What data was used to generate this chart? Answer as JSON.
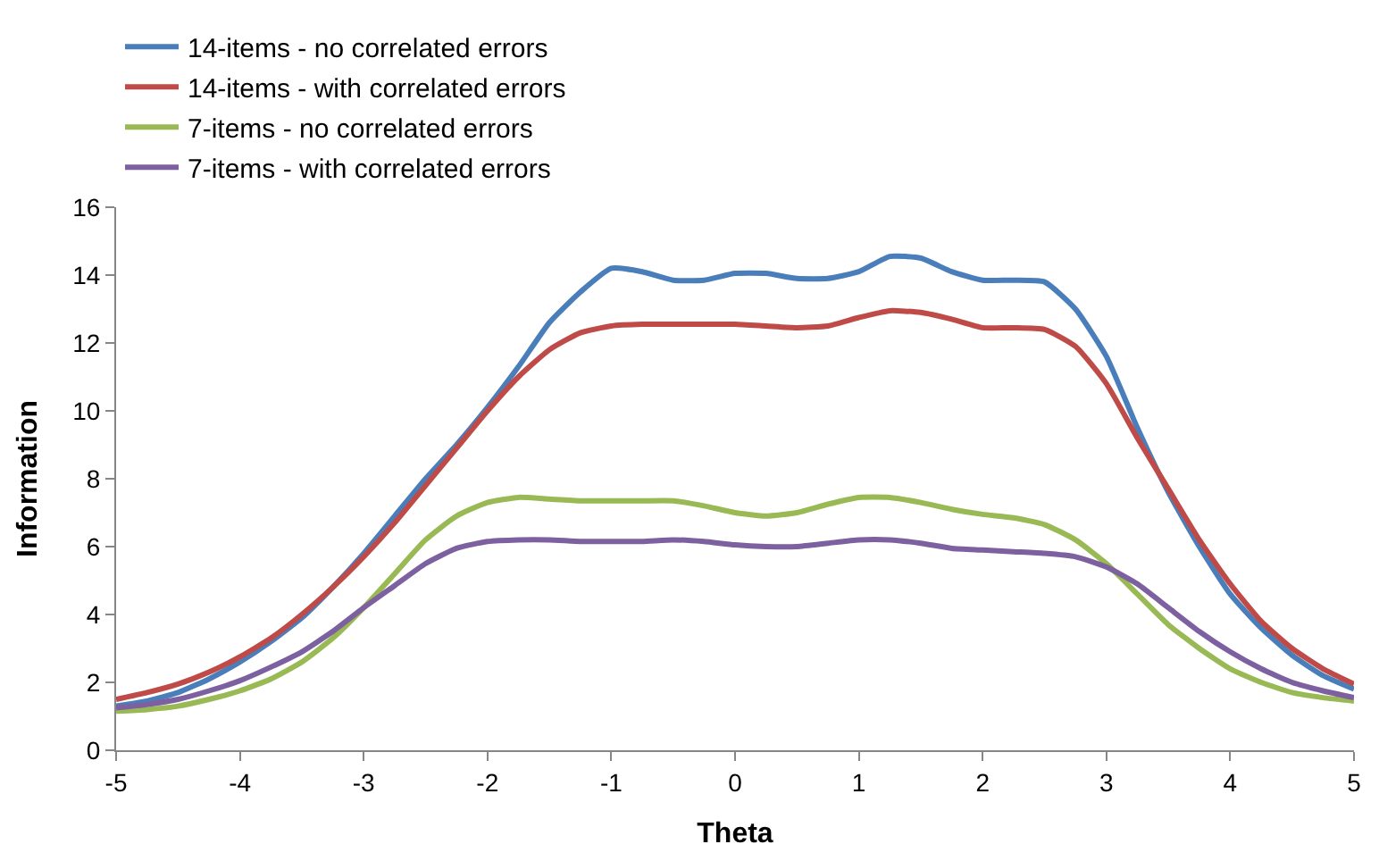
{
  "chart_data": {
    "type": "line",
    "xlabel": "Theta",
    "ylabel": "Information",
    "x": [
      -5,
      -4.75,
      -4.5,
      -4.25,
      -4,
      -3.75,
      -3.5,
      -3.25,
      -3,
      -2.75,
      -2.5,
      -2.25,
      -2,
      -1.75,
      -1.5,
      -1.25,
      -1,
      -0.75,
      -0.5,
      -0.25,
      0,
      0.25,
      0.5,
      0.75,
      1,
      1.25,
      1.5,
      1.75,
      2,
      2.25,
      2.5,
      2.75,
      3,
      3.25,
      3.5,
      3.75,
      4,
      4.25,
      4.5,
      4.75,
      5
    ],
    "series": [
      {
        "name": "14-items - no correlated errors",
        "color": "#4a7ebb",
        "values": [
          1.3,
          1.45,
          1.7,
          2.1,
          2.6,
          3.2,
          3.9,
          4.8,
          5.8,
          6.9,
          8.0,
          9.0,
          10.1,
          11.3,
          12.6,
          13.5,
          14.2,
          14.1,
          13.85,
          13.85,
          14.05,
          14.05,
          13.9,
          13.9,
          14.1,
          14.55,
          14.5,
          14.1,
          13.85,
          13.85,
          13.8,
          13.0,
          11.6,
          9.5,
          7.6,
          6.0,
          4.6,
          3.6,
          2.8,
          2.2,
          1.8
        ]
      },
      {
        "name": "14-items - with correlated errors",
        "color": "#be4b48",
        "values": [
          1.5,
          1.7,
          1.95,
          2.3,
          2.75,
          3.3,
          4.0,
          4.8,
          5.7,
          6.7,
          7.8,
          8.9,
          10.0,
          11.0,
          11.8,
          12.3,
          12.5,
          12.55,
          12.55,
          12.55,
          12.55,
          12.5,
          12.45,
          12.5,
          12.75,
          12.95,
          12.9,
          12.7,
          12.45,
          12.45,
          12.4,
          11.9,
          10.8,
          9.2,
          7.7,
          6.2,
          4.9,
          3.8,
          3.0,
          2.4,
          1.95
        ]
      },
      {
        "name": "7-items - no correlated errors",
        "color": "#98b954",
        "values": [
          1.15,
          1.2,
          1.3,
          1.5,
          1.75,
          2.1,
          2.6,
          3.3,
          4.2,
          5.2,
          6.2,
          6.9,
          7.3,
          7.45,
          7.4,
          7.35,
          7.35,
          7.35,
          7.35,
          7.2,
          7.0,
          6.9,
          7.0,
          7.25,
          7.45,
          7.45,
          7.3,
          7.1,
          6.95,
          6.85,
          6.65,
          6.2,
          5.5,
          4.6,
          3.7,
          3.0,
          2.4,
          2.0,
          1.7,
          1.55,
          1.45
        ]
      },
      {
        "name": "7-items - with correlated errors",
        "color": "#7d60a0",
        "values": [
          1.25,
          1.35,
          1.5,
          1.75,
          2.05,
          2.45,
          2.9,
          3.5,
          4.2,
          4.85,
          5.5,
          5.95,
          6.15,
          6.2,
          6.2,
          6.15,
          6.15,
          6.15,
          6.2,
          6.15,
          6.05,
          6.0,
          6.0,
          6.1,
          6.2,
          6.2,
          6.1,
          5.95,
          5.9,
          5.85,
          5.8,
          5.7,
          5.4,
          4.9,
          4.2,
          3.5,
          2.9,
          2.4,
          2.0,
          1.75,
          1.55
        ]
      }
    ],
    "xlim": [
      -5,
      5
    ],
    "xticks": [
      -5,
      -4,
      -3,
      -2,
      -1,
      0,
      1,
      2,
      3,
      4,
      5
    ],
    "ylim": [
      0,
      16
    ],
    "yticks": [
      0,
      2,
      4,
      6,
      8,
      10,
      12,
      14,
      16
    ],
    "grid": false,
    "legend": "top",
    "marker": "none",
    "line_style": "solid"
  }
}
